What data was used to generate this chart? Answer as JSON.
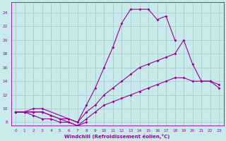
{
  "xlabel": "Windchill (Refroidissement éolien,°C)",
  "bg_color": "#c8eaea",
  "line_color": "#990099",
  "grid_color": "#aacccc",
  "xlim": [
    -0.5,
    23.5
  ],
  "ylim": [
    7.5,
    25.5
  ],
  "yticks": [
    8,
    10,
    12,
    14,
    16,
    18,
    20,
    22,
    24
  ],
  "xticks": [
    0,
    1,
    2,
    3,
    4,
    5,
    6,
    7,
    8,
    9,
    10,
    11,
    12,
    13,
    14,
    15,
    16,
    17,
    18,
    19,
    20,
    21,
    22,
    23
  ],
  "curve1_x": [
    0,
    1,
    2,
    3,
    4,
    5,
    6,
    7,
    8,
    9,
    10,
    11,
    12,
    13,
    14,
    15,
    16,
    17,
    18
  ],
  "curve1_y": [
    9.5,
    9.5,
    9.5,
    9.5,
    9.0,
    8.5,
    8.5,
    8.0,
    10.5,
    13.0,
    16.0,
    19.0,
    22.5,
    24.5,
    24.5,
    24.5,
    23.0,
    23.5,
    20.0
  ],
  "curve2_x": [
    0,
    1,
    2,
    3,
    4,
    5,
    6,
    7,
    8
  ],
  "curve2_y": [
    9.5,
    9.5,
    9.0,
    8.5,
    8.5,
    8.0,
    8.0,
    7.5,
    8.0
  ],
  "curve3_x": [
    0,
    1,
    2,
    3,
    7,
    8,
    9,
    10,
    11,
    12,
    13,
    14,
    15,
    16,
    17,
    18,
    19,
    20,
    21,
    22,
    23
  ],
  "curve3_y": [
    9.5,
    9.5,
    10.0,
    10.0,
    8.0,
    9.5,
    10.5,
    12.0,
    13.0,
    14.0,
    15.0,
    16.0,
    16.5,
    17.0,
    17.5,
    18.0,
    20.0,
    16.5,
    14.0,
    14.0,
    13.5
  ],
  "curve4_x": [
    0,
    1,
    2,
    3,
    7,
    8,
    9,
    10,
    11,
    12,
    13,
    14,
    15,
    16,
    17,
    18,
    19,
    20,
    21,
    22,
    23
  ],
  "curve4_y": [
    9.5,
    9.5,
    9.5,
    9.5,
    7.5,
    8.5,
    9.5,
    10.5,
    11.0,
    11.5,
    12.0,
    12.5,
    13.0,
    13.5,
    14.0,
    14.5,
    14.5,
    14.0,
    14.0,
    14.0,
    13.0
  ]
}
